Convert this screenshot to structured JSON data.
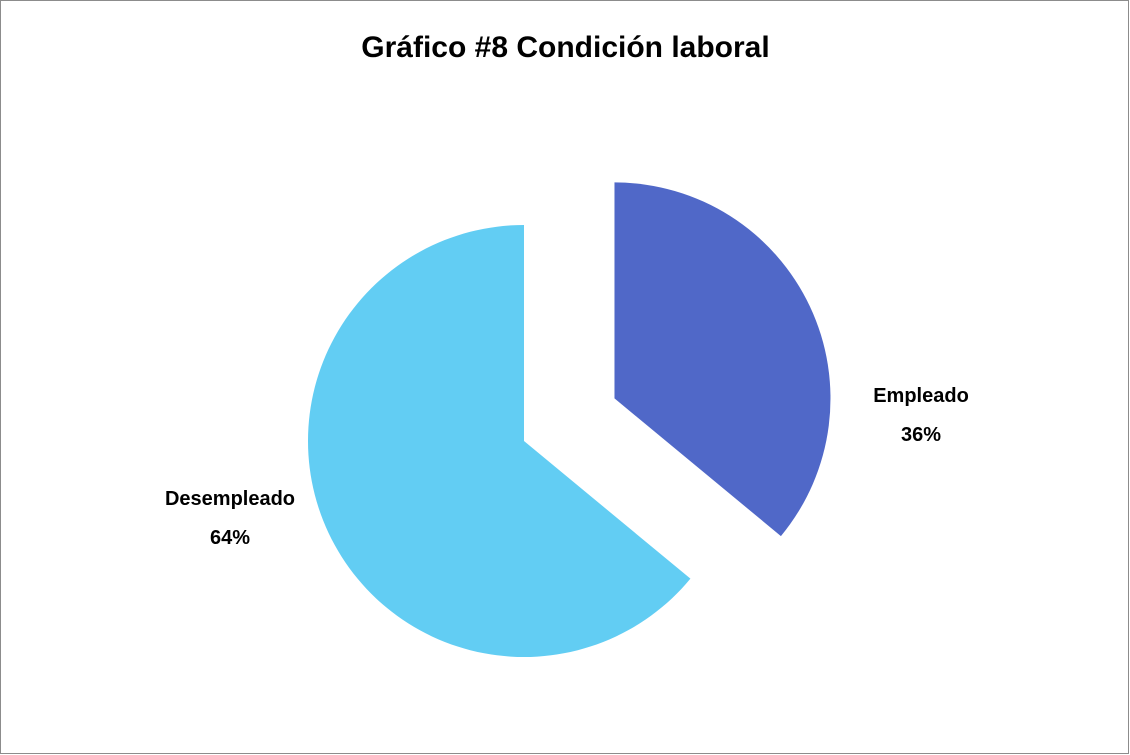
{
  "chart_data": {
    "type": "pie",
    "title": "Gráfico #8 Condición laboral",
    "categories": [
      "Empleado",
      "Desempleado"
    ],
    "values": [
      36,
      64
    ],
    "unit": "%",
    "data_labels": [
      "36%",
      "64%"
    ],
    "colors": [
      "#5068c8",
      "#62cdf3"
    ],
    "exploded": [
      "Empleado"
    ],
    "legend": "none"
  }
}
